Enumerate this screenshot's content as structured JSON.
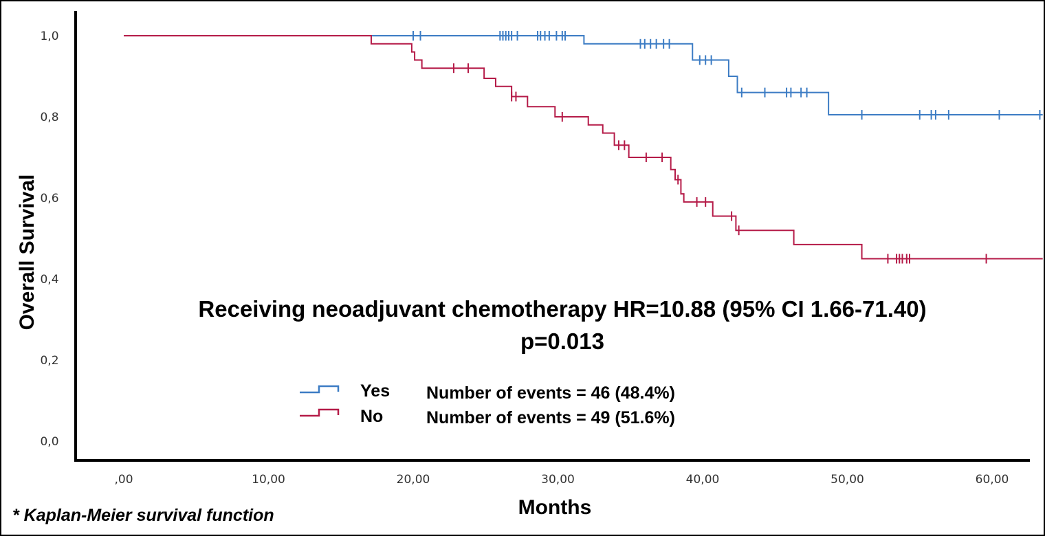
{
  "chart_data": {
    "type": "line",
    "subtype": "kaplan-meier step",
    "xlabel": "Months",
    "ylabel": "Overall Survival",
    "xlim": [
      -5,
      63.5
    ],
    "ylim": [
      -0.05,
      1.05
    ],
    "x_ticks": [
      0,
      10,
      20,
      30,
      40,
      50,
      60
    ],
    "x_tick_labels": [
      ",00",
      "10,00",
      "20,00",
      "30,00",
      "40,00",
      "50,00",
      "60,00"
    ],
    "y_ticks": [
      0,
      0.2,
      0.4,
      0.6,
      0.8,
      1.0
    ],
    "y_tick_labels": [
      "0,0",
      "0,2",
      "0,4",
      "0,6",
      "0,8",
      "1,0"
    ],
    "annotation_lines": [
      "Receiving neoadjuvant chemotherapy HR=10.88 (95% CI 1.66-71.40)",
      "p=0.013"
    ],
    "legend": [
      {
        "label": "Yes",
        "events": "Number of events = 46 (48.4%)"
      },
      {
        "label": "No",
        "events": "Number of events = 49 (51.6%)"
      }
    ],
    "series": [
      {
        "name": "Yes",
        "color": "#3c7cc4",
        "steps": [
          [
            0,
            1.0
          ],
          [
            31.8,
            0.98
          ],
          [
            39.3,
            0.94
          ],
          [
            41.8,
            0.9
          ],
          [
            42.4,
            0.86
          ],
          [
            48.7,
            0.805
          ],
          [
            63.5,
            0.805
          ]
        ],
        "censor_x": [
          20,
          20.5,
          26,
          26.2,
          26.4,
          26.6,
          26.8,
          27.2,
          28.6,
          28.8,
          29.1,
          29.4,
          29.9,
          30.3,
          30.5,
          35.7,
          36.0,
          36.4,
          36.8,
          37.3,
          37.7,
          39.8,
          40.2,
          40.6,
          42.7,
          44.3,
          45.8,
          46.1,
          46.8,
          47.2,
          51.0,
          55.0,
          55.8,
          56.1,
          57.0,
          60.5,
          63.3
        ]
      },
      {
        "name": "No",
        "color": "#b51b48",
        "steps": [
          [
            0,
            1.0
          ],
          [
            17.1,
            0.98
          ],
          [
            19.9,
            0.96
          ],
          [
            20.1,
            0.94
          ],
          [
            20.6,
            0.92
          ],
          [
            24.9,
            0.895
          ],
          [
            25.7,
            0.875
          ],
          [
            26.8,
            0.85
          ],
          [
            27.9,
            0.825
          ],
          [
            29.8,
            0.8
          ],
          [
            32.1,
            0.78
          ],
          [
            33.1,
            0.76
          ],
          [
            33.9,
            0.73
          ],
          [
            34.9,
            0.7
          ],
          [
            37.8,
            0.67
          ],
          [
            38.1,
            0.645
          ],
          [
            38.5,
            0.61
          ],
          [
            38.7,
            0.59
          ],
          [
            40.7,
            0.555
          ],
          [
            42.3,
            0.52
          ],
          [
            46.3,
            0.485
          ],
          [
            51.0,
            0.45
          ],
          [
            63.5,
            0.45
          ]
        ],
        "censor_x": [
          22.8,
          23.8,
          26.8,
          27.1,
          30.3,
          34.2,
          34.6,
          36.1,
          37.2,
          38.3,
          39.6,
          40.2,
          42.0,
          42.5,
          52.8,
          53.4,
          53.6,
          53.8,
          54.1,
          54.3,
          59.6
        ]
      }
    ],
    "grid": false,
    "legend_position": "bottom-center"
  },
  "footnote": "* Kaplan-Meier survival function"
}
